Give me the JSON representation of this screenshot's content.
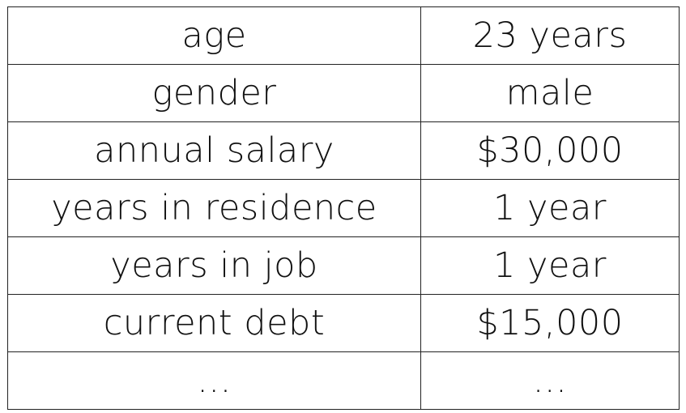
{
  "table": {
    "rows": [
      {
        "attribute": "age",
        "value": "23 years"
      },
      {
        "attribute": "gender",
        "value": "male"
      },
      {
        "attribute": "annual salary",
        "value": "$30,000"
      },
      {
        "attribute": "years in residence",
        "value": "1 year"
      },
      {
        "attribute": "years in job",
        "value": "1 year"
      },
      {
        "attribute": "current debt",
        "value": "$15,000"
      },
      {
        "attribute": "...",
        "value": "..."
      }
    ]
  }
}
